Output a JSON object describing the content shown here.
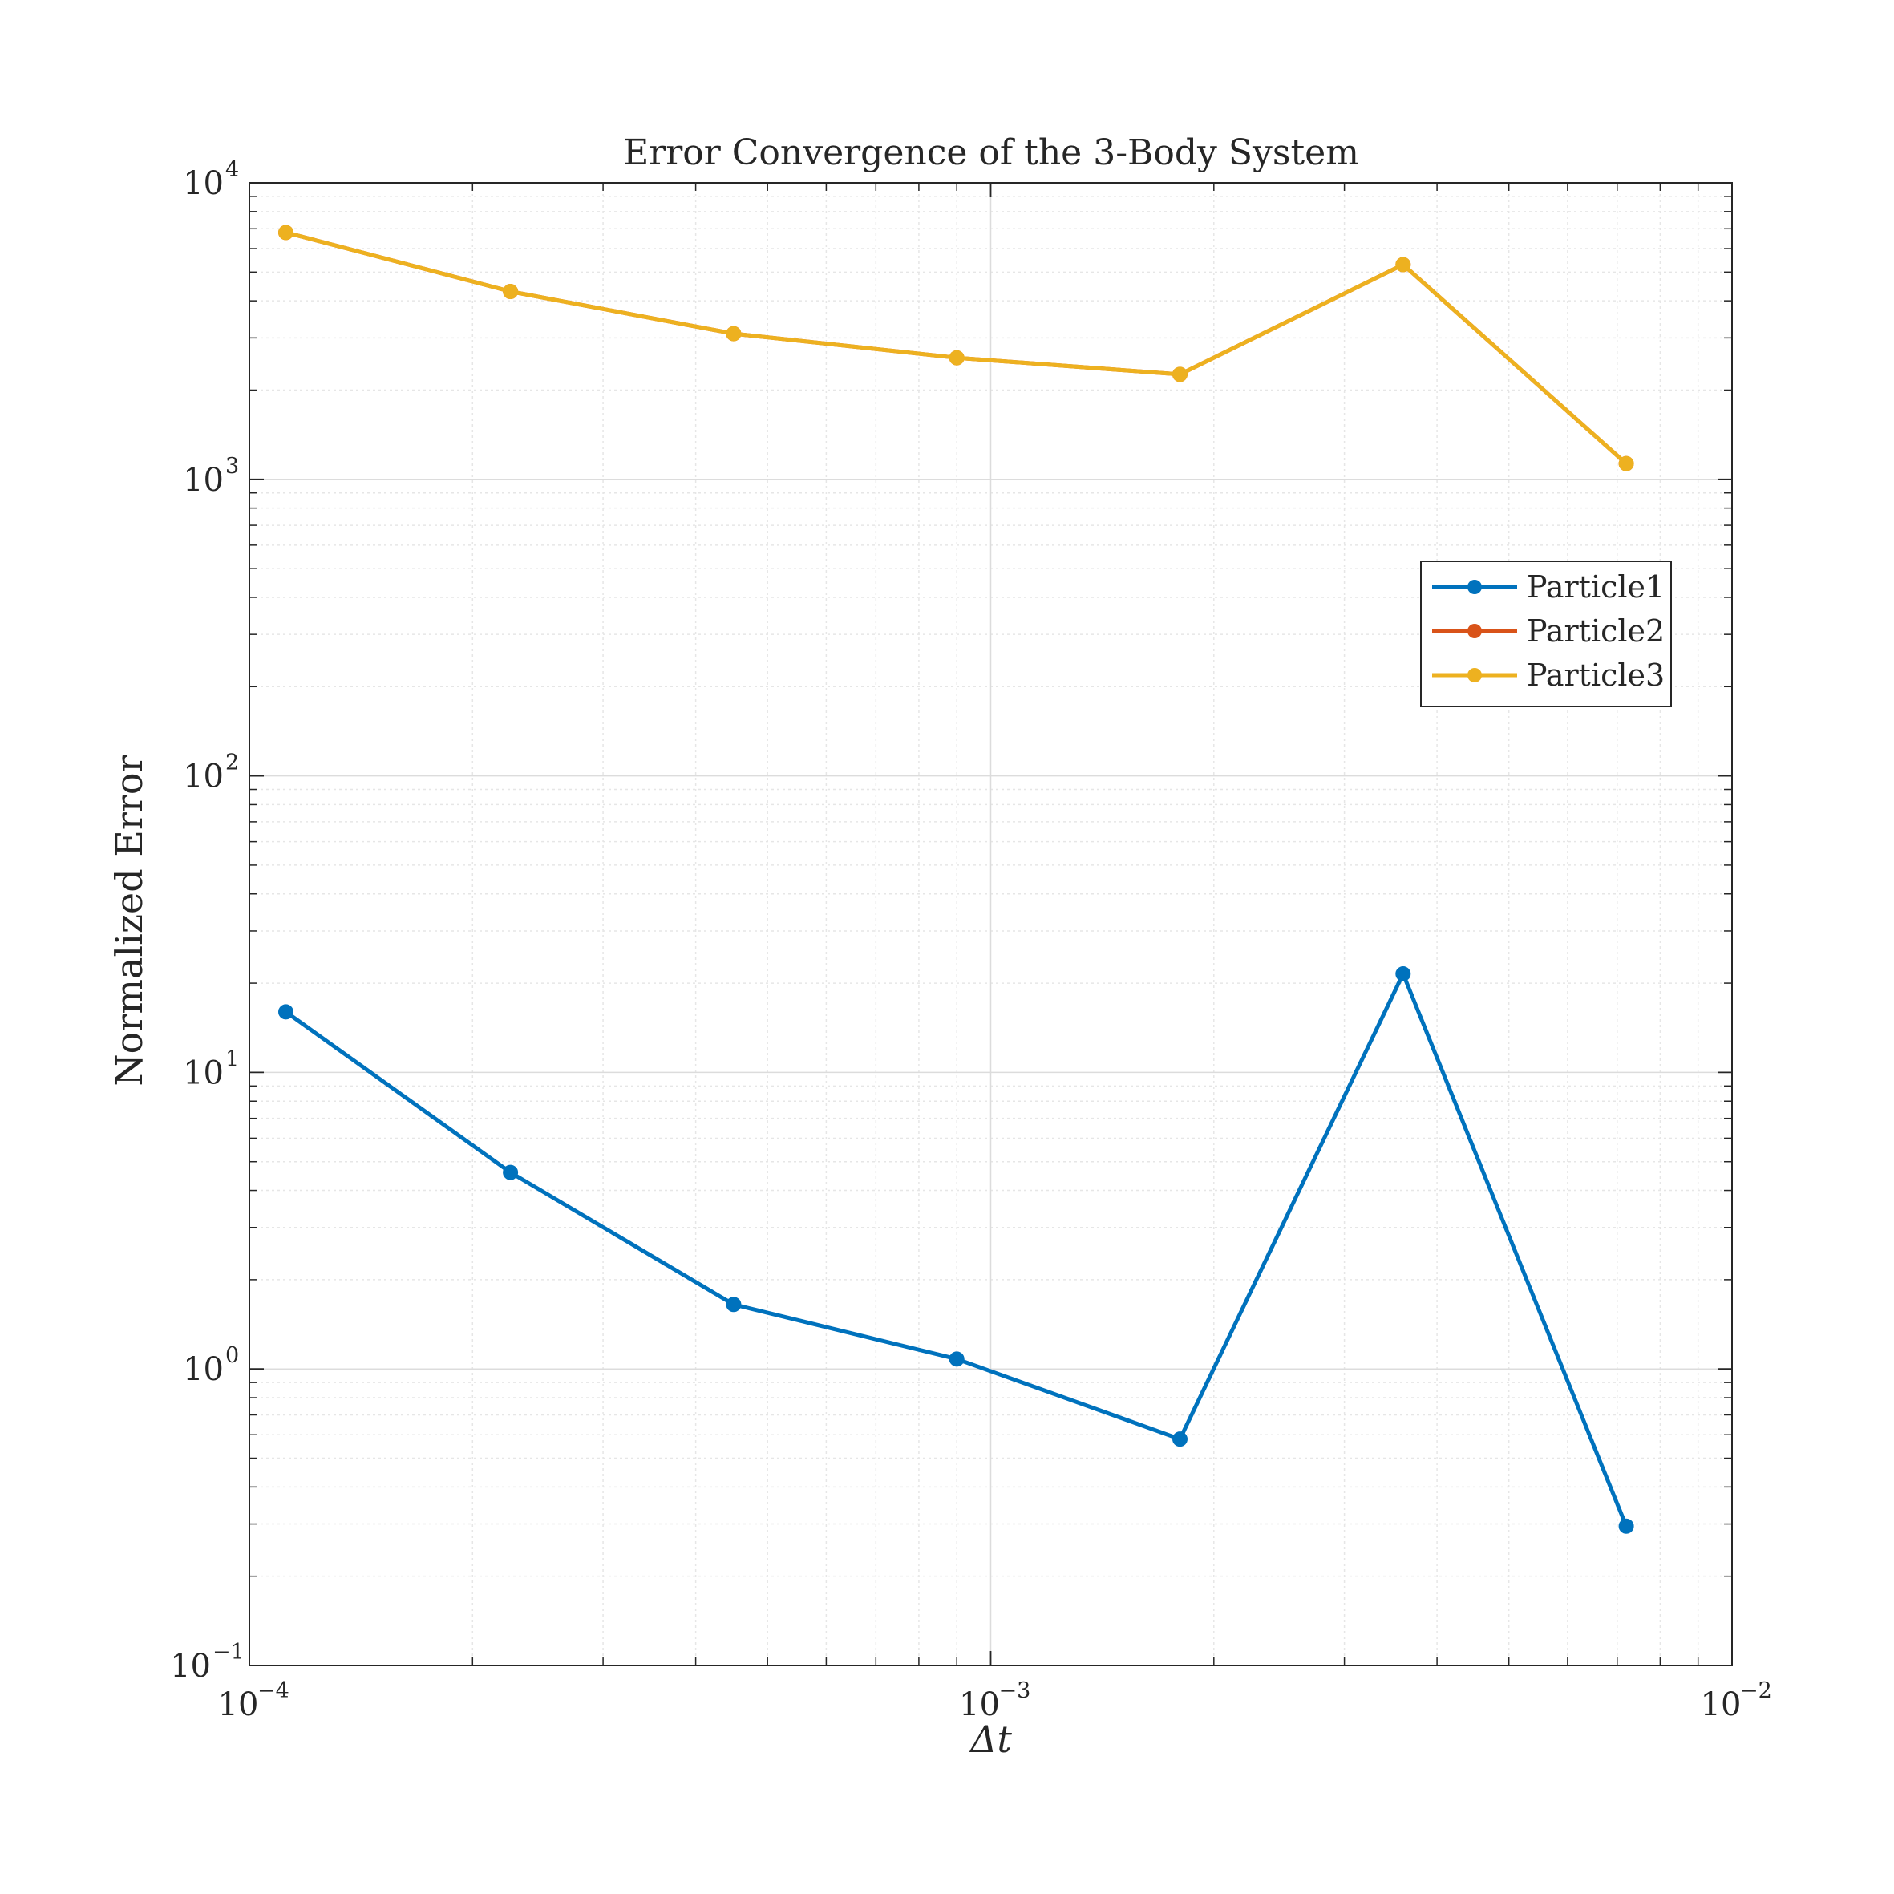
{
  "chart_data": {
    "type": "line",
    "title": "Error Convergence of the 3-Body System",
    "xlabel": "Δt",
    "ylabel": "Normalized Error",
    "xscale": "log",
    "yscale": "log",
    "xlim": [
      0.0001,
      0.01
    ],
    "ylim": [
      0.1,
      10000
    ],
    "grid": true,
    "minor_grid": true,
    "legend_position": "right, upper-middle",
    "x_ticks": [
      {
        "value": 0.0001,
        "base": "10",
        "exp": "−4"
      },
      {
        "value": 0.001,
        "base": "10",
        "exp": "−3"
      },
      {
        "value": 0.01,
        "base": "10",
        "exp": "−2"
      }
    ],
    "y_ticks": [
      {
        "value": 0.1,
        "base": "10",
        "exp": "−1"
      },
      {
        "value": 1,
        "base": "10",
        "exp": "0"
      },
      {
        "value": 10,
        "base": "10",
        "exp": "1"
      },
      {
        "value": 100,
        "base": "10",
        "exp": "2"
      },
      {
        "value": 1000,
        "base": "10",
        "exp": "3"
      },
      {
        "value": 10000,
        "base": "10",
        "exp": "4"
      }
    ],
    "x": [
      0.000112,
      0.000225,
      0.00045,
      0.0009,
      0.0018,
      0.0036,
      0.0072
    ],
    "series": [
      {
        "name": "Particle1",
        "color": "#0072BD",
        "values": [
          16.0,
          4.6,
          1.65,
          1.08,
          0.58,
          21.5,
          0.295
        ]
      },
      {
        "name": "Particle2",
        "color": "#D95319",
        "values": [
          6800,
          4300,
          3100,
          2570,
          2260,
          5300,
          1130
        ]
      },
      {
        "name": "Particle3",
        "color": "#EDB120",
        "values": [
          6800,
          4300,
          3100,
          2570,
          2260,
          5300,
          1130
        ]
      }
    ]
  }
}
